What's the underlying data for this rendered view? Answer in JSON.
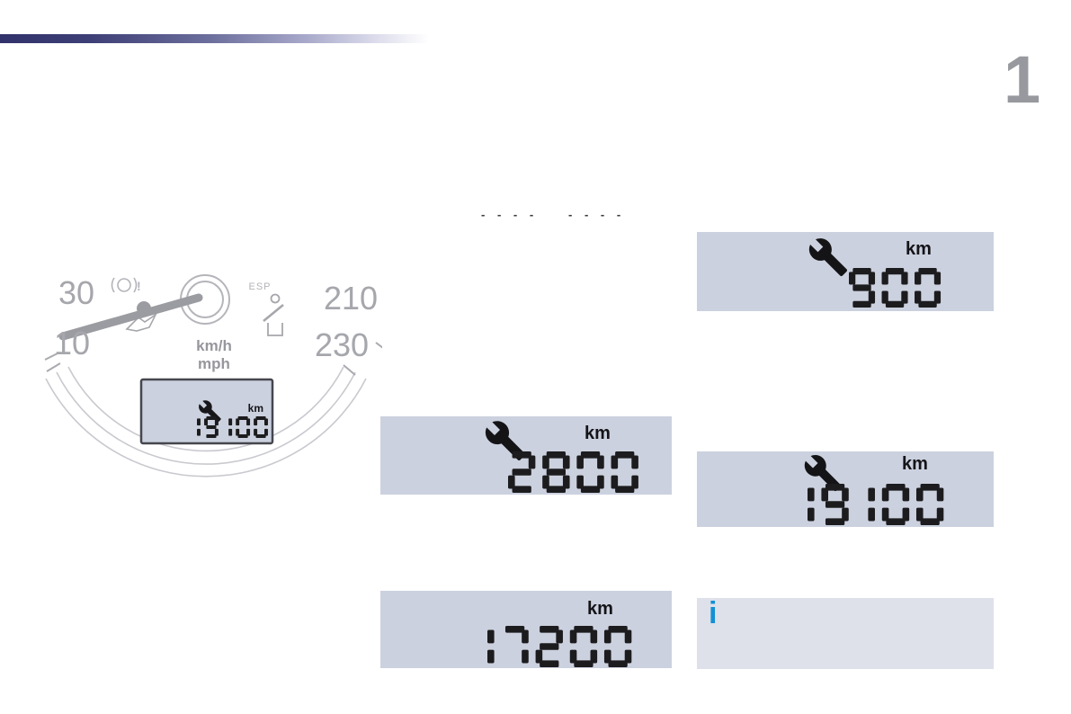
{
  "page": {
    "chapter_number": "1",
    "cropped_text_marks": [
      "- - - -",
      "- - - -"
    ]
  },
  "instrument_cluster": {
    "scale_labels": {
      "left_top": "30",
      "left_bottom": "10",
      "right_top": "210",
      "right_bottom": "230"
    },
    "esp_label": "ESP",
    "speed_units": {
      "primary": "km/h",
      "secondary": "mph"
    },
    "lcd": {
      "value": "19 100",
      "unit": "km"
    }
  },
  "service_displays": [
    {
      "value": "900",
      "unit": "km",
      "wrench": true
    },
    {
      "value": "2800",
      "unit": "km",
      "wrench": true
    },
    {
      "value": "19 100",
      "unit": "km",
      "wrench": true
    },
    {
      "value": "17200",
      "unit": "km",
      "wrench": false
    }
  ],
  "info_note": {
    "icon_label": "i"
  },
  "colors": {
    "lcd_background": "#ccd1df",
    "info_background": "#dee0ea",
    "segment_color": "#1c1c1e",
    "info_icon_color": "#1490d4",
    "chapter_number_color": "#97999e",
    "header_gradient_start": "#31326b",
    "cluster_line_color": "#a9aaaf"
  }
}
